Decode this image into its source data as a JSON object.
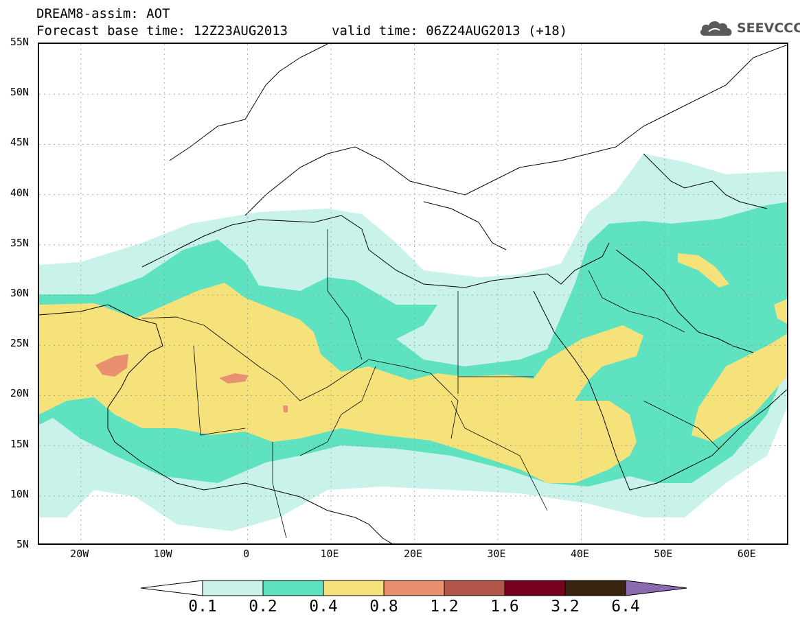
{
  "header": {
    "title": "DREAM8-assim: AOT",
    "base_time": "Forecast base time: 12Z23AUG2013",
    "valid_time": "valid time: 06Z24AUG2013 (+18)"
  },
  "logo": {
    "text": "SEEVCCC",
    "icon": "cloud-icon",
    "color": "#555555"
  },
  "map": {
    "lon_range": [
      -25,
      65
    ],
    "lat_range": [
      5,
      55
    ],
    "lat_labels": [
      "55N",
      "50N",
      "45N",
      "40N",
      "35N",
      "30N",
      "25N",
      "20N",
      "15N",
      "10N",
      "5N"
    ],
    "lon_labels": [
      "20W",
      "10W",
      "0",
      "10E",
      "20E",
      "30E",
      "40E",
      "50E",
      "60E"
    ],
    "gridlines": "dotted",
    "colors": {
      "c01": "#c8f2ea",
      "c02": "#5ee2bf",
      "c04": "#f5e27a",
      "c08": "#e89070"
    }
  },
  "colorbar": {
    "labels": [
      "0.1",
      "0.2",
      "0.4",
      "0.8",
      "1.2",
      "1.6",
      "3.2",
      "6.4"
    ],
    "colors": [
      "#ffffff",
      "#c8f2ea",
      "#5ee2bf",
      "#f5e27a",
      "#e89070",
      "#b3574a",
      "#7a0020",
      "#3a2410",
      "#8b6bb0"
    ]
  }
}
